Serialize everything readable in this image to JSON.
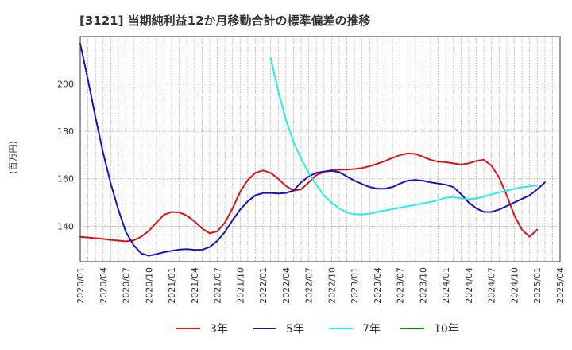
{
  "chart_data": {
    "type": "line",
    "title": "[3121]  当期純利益12か月移動合計の標準偏差の推移",
    "ylabel": "(百万円)",
    "xlabel": "",
    "ylim": [
      125,
      220
    ],
    "yticks": [
      140,
      160,
      180,
      200
    ],
    "grid": true,
    "legend_position": "bottom",
    "x_start": "2020-01",
    "x_end": "2025-04",
    "x_ticks": [
      "2020/01",
      "2020/04",
      "2020/07",
      "2020/10",
      "2021/01",
      "2021/04",
      "2021/07",
      "2021/10",
      "2022/01",
      "2022/04",
      "2022/07",
      "2022/10",
      "2023/01",
      "2023/04",
      "2023/07",
      "2023/10",
      "2024/01",
      "2024/04",
      "2024/07",
      "2024/10",
      "2025/01",
      "2025/04"
    ],
    "series": [
      {
        "name": "3年",
        "color": "#dd1111",
        "start": "2020-01",
        "values": [
          135.5,
          135.2,
          134.9,
          134.6,
          134.2,
          133.9,
          133.6,
          134.0,
          135.5,
          138.0,
          141.5,
          144.8,
          146.0,
          145.8,
          144.5,
          142.0,
          139.0,
          137.0,
          137.8,
          141.5,
          147.5,
          154.5,
          159.5,
          162.5,
          163.5,
          162.5,
          160.0,
          157.0,
          155.0,
          155.5,
          158.5,
          161.5,
          163.0,
          163.6,
          163.8,
          163.9,
          164.1,
          164.5,
          165.3,
          166.3,
          167.5,
          168.8,
          170.0,
          170.7,
          170.5,
          169.3,
          168.0,
          167.2,
          167.0,
          166.5,
          166.0,
          166.5,
          167.5,
          168.0,
          165.5,
          160.5,
          153.0,
          144.5,
          138.5,
          135.5,
          138.5
        ]
      },
      {
        "name": "5年",
        "color": "#1515bb",
        "start": "2020-01",
        "values": [
          217.0,
          202.0,
          186.0,
          171.0,
          158.0,
          147.0,
          137.5,
          132.0,
          128.5,
          127.5,
          128.2,
          129.0,
          129.6,
          130.1,
          130.3,
          130.0,
          130.0,
          131.2,
          133.8,
          137.6,
          142.5,
          147.0,
          150.5,
          153.0,
          154.0,
          154.0,
          153.8,
          154.0,
          155.0,
          158.5,
          161.0,
          162.5,
          163.0,
          163.3,
          162.8,
          161.0,
          159.2,
          157.8,
          156.5,
          155.8,
          155.8,
          156.5,
          158.0,
          159.2,
          159.5,
          159.2,
          158.5,
          158.0,
          157.5,
          156.5,
          153.5,
          150.0,
          147.5,
          146.0,
          146.0,
          147.0,
          148.5,
          150.0,
          151.5,
          153.0,
          155.5,
          158.5
        ]
      },
      {
        "name": "7年",
        "color": "#22eeee",
        "start": "2022-02",
        "values": [
          211.0,
          197.0,
          185.0,
          175.5,
          168.5,
          162.5,
          157.5,
          153.0,
          150.0,
          147.5,
          145.8,
          145.0,
          144.9,
          145.3,
          146.0,
          146.6,
          147.2,
          147.8,
          148.4,
          149.0,
          149.6,
          150.2,
          151.0,
          152.0,
          152.3,
          151.7,
          151.4,
          151.7,
          152.4,
          153.4,
          154.2,
          155.0,
          155.8,
          156.4,
          156.8,
          157.2
        ]
      },
      {
        "name": "10年",
        "color": "#118811",
        "start": "2025-01",
        "values": []
      }
    ]
  }
}
